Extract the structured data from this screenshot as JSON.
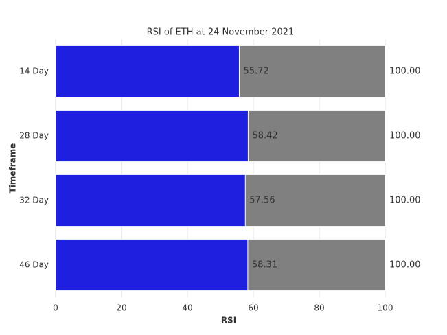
{
  "chart_data": {
    "type": "barh",
    "title": "RSI of ETH at 24 November 2021",
    "xlabel": "RSI",
    "ylabel": "Timeframe",
    "categories": [
      "14 Day",
      "28 Day",
      "32 Day",
      "46 Day"
    ],
    "series": [
      {
        "color": "#808080",
        "values": [
          100,
          100,
          100,
          100
        ],
        "value_labels": [
          "100.00",
          "100.00",
          "100.00",
          "100.00"
        ]
      },
      {
        "color": "#1f1fe0",
        "values": [
          55.72,
          58.42,
          57.56,
          58.31
        ]
      }
    ],
    "xlim": [
      0,
      100
    ],
    "xticks": [
      0,
      20,
      40,
      60,
      80,
      100
    ],
    "grid": true
  }
}
